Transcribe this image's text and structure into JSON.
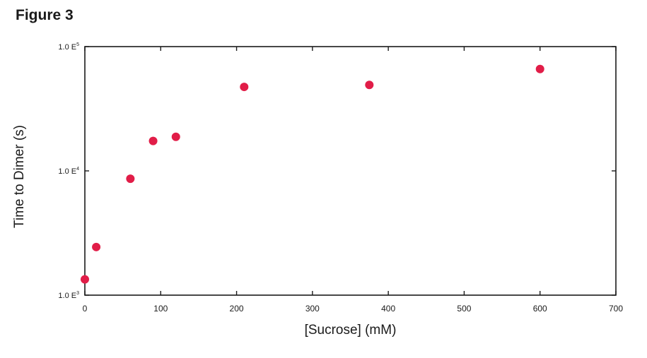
{
  "figure_label": "Figure 3",
  "chart_data": {
    "type": "scatter",
    "xlabel": "[Sucrose] (mM)",
    "ylabel": "Time to Dimer (s)",
    "x_scale": "linear",
    "y_scale": "log",
    "xlim": [
      0,
      700
    ],
    "ylim": [
      1000,
      100000
    ],
    "x_ticks": [
      0,
      100,
      200,
      300,
      400,
      500,
      600,
      700
    ],
    "x_tick_labels": [
      "0",
      "100",
      "200",
      "300",
      "400",
      "500",
      "600",
      "700"
    ],
    "y_ticks": [
      1000,
      10000,
      100000
    ],
    "y_tick_labels": [
      {
        "base": "1.0 E",
        "exp": "3"
      },
      {
        "base": "1.0 E",
        "exp": "4"
      },
      {
        "base": "1.0 E",
        "exp": "5"
      }
    ],
    "grid": false,
    "marker_color": "#e11d48",
    "points": [
      {
        "x": 0,
        "y": 1340
      },
      {
        "x": 15,
        "y": 2440
      },
      {
        "x": 60,
        "y": 8650
      },
      {
        "x": 90,
        "y": 17400
      },
      {
        "x": 120,
        "y": 18800
      },
      {
        "x": 210,
        "y": 47400
      },
      {
        "x": 375,
        "y": 49200
      },
      {
        "x": 600,
        "y": 66000
      }
    ]
  }
}
